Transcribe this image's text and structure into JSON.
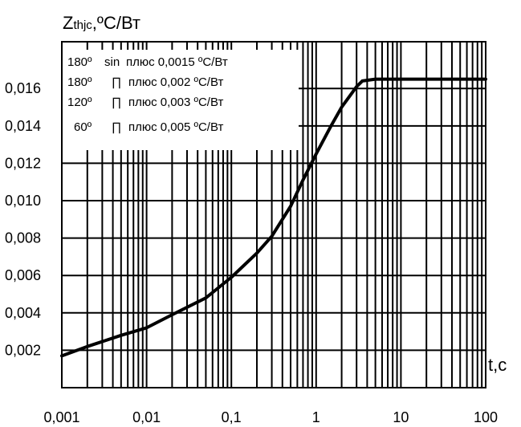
{
  "chart_data": {
    "type": "line",
    "y_title_main": "Z",
    "y_title_sub": "thjc",
    "y_title_unit": ",ºC/Вт",
    "xlabel": "t,c",
    "x_scale": "log",
    "xlim": [
      0.001,
      100
    ],
    "ylim": [
      0,
      0.0185
    ],
    "grid": true,
    "x_tick_labels": [
      "0,001",
      "0,01",
      "0,1",
      "1",
      "10",
      "100"
    ],
    "y_tick_labels": [
      "0,002",
      "0,004",
      "0,006",
      "0,008",
      "0,010",
      "0,012",
      "0,014",
      "0,016"
    ],
    "y_ticks": [
      0.002,
      0.004,
      0.006,
      0.008,
      0.01,
      0.012,
      0.014,
      0.016
    ],
    "legend_placement": "top-left",
    "legend": [
      {
        "angle": "180º",
        "shape": "sin",
        "text": "плюс 0,0015 ºC/Вт"
      },
      {
        "angle": "180º",
        "shape": "∏",
        "text": "плюс 0,002 ºC/Вт"
      },
      {
        "angle": "120º",
        "shape": "∏",
        "text": "плюс 0,003 ºC/Вт"
      },
      {
        "angle": "60º",
        "shape": "∏",
        "text": "плюс 0,005 ºC/Вт"
      }
    ],
    "series": [
      {
        "color": "#000000",
        "x": [
          0.001,
          0.002,
          0.005,
          0.01,
          0.02,
          0.05,
          0.1,
          0.2,
          0.3,
          0.5,
          0.7,
          1,
          1.5,
          2,
          3,
          3.5,
          5,
          10,
          100
        ],
        "y": [
          0.0017,
          0.0022,
          0.0028,
          0.0032,
          0.0039,
          0.0048,
          0.0059,
          0.0072,
          0.0081,
          0.0097,
          0.0111,
          0.0125,
          0.014,
          0.015,
          0.0161,
          0.0164,
          0.0165,
          0.0165,
          0.0165
        ]
      }
    ]
  }
}
